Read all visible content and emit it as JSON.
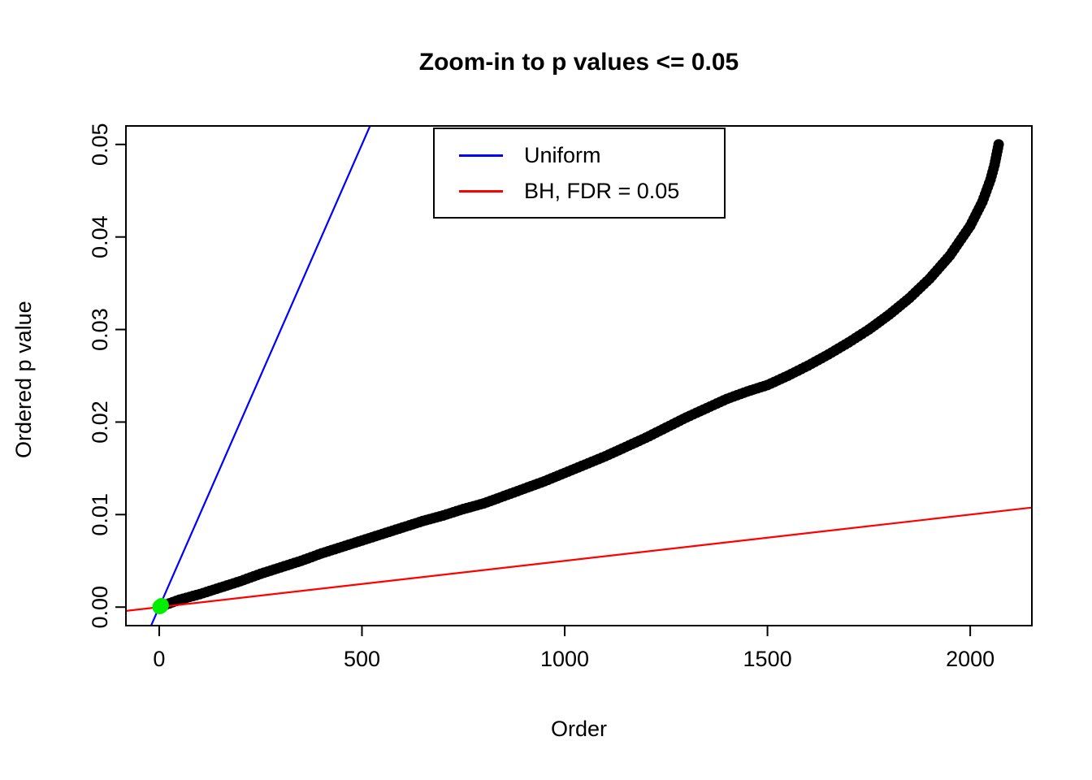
{
  "chart_data": {
    "type": "scatter",
    "title": "Zoom-in to p values <= 0.05",
    "xlabel": "Order",
    "ylabel": "Ordered p value",
    "xlim": [
      -82,
      2152
    ],
    "ylim": [
      -0.002,
      0.052
    ],
    "grid": false,
    "x_ticks": [
      0,
      500,
      1000,
      1500,
      2000
    ],
    "x_tick_labels": [
      "0",
      "500",
      "1000",
      "1500",
      "2000"
    ],
    "y_ticks": [
      0.0,
      0.01,
      0.02,
      0.03,
      0.04,
      0.05
    ],
    "y_tick_labels": [
      "0.00",
      "0.01",
      "0.02",
      "0.03",
      "0.04",
      "0.05"
    ],
    "legend": {
      "position": "top-center-inside",
      "entries": [
        {
          "label": "Uniform",
          "color": "#0000ff"
        },
        {
          "label": "BH, FDR = 0.05",
          "color": "#ff0000"
        }
      ]
    },
    "series": [
      {
        "name": "ordered-p-values",
        "type": "scatter",
        "color": "#000000",
        "marker": "filled-circle",
        "points": [
          [
            1,
            5e-05
          ],
          [
            25,
            0.0004
          ],
          [
            50,
            0.0008
          ],
          [
            75,
            0.0011
          ],
          [
            100,
            0.0014
          ],
          [
            150,
            0.0021
          ],
          [
            200,
            0.0028
          ],
          [
            250,
            0.0036
          ],
          [
            300,
            0.0043
          ],
          [
            350,
            0.005
          ],
          [
            400,
            0.0058
          ],
          [
            450,
            0.0065
          ],
          [
            500,
            0.0072
          ],
          [
            550,
            0.0079
          ],
          [
            600,
            0.0086
          ],
          [
            650,
            0.0093
          ],
          [
            700,
            0.0099
          ],
          [
            750,
            0.0106
          ],
          [
            800,
            0.0112
          ],
          [
            850,
            0.012
          ],
          [
            900,
            0.0128
          ],
          [
            950,
            0.0136
          ],
          [
            1000,
            0.0145
          ],
          [
            1050,
            0.0154
          ],
          [
            1100,
            0.0163
          ],
          [
            1150,
            0.0173
          ],
          [
            1200,
            0.0183
          ],
          [
            1250,
            0.0194
          ],
          [
            1300,
            0.0205
          ],
          [
            1350,
            0.0215
          ],
          [
            1400,
            0.0225
          ],
          [
            1450,
            0.0233
          ],
          [
            1500,
            0.024
          ],
          [
            1550,
            0.025
          ],
          [
            1600,
            0.0261
          ],
          [
            1650,
            0.0273
          ],
          [
            1700,
            0.0286
          ],
          [
            1750,
            0.03
          ],
          [
            1800,
            0.0316
          ],
          [
            1850,
            0.0334
          ],
          [
            1900,
            0.0355
          ],
          [
            1950,
            0.038
          ],
          [
            2000,
            0.0412
          ],
          [
            2030,
            0.0438
          ],
          [
            2050,
            0.0462
          ],
          [
            2060,
            0.0478
          ],
          [
            2070,
            0.05
          ]
        ]
      },
      {
        "name": "uniform-line",
        "label": "Uniform",
        "type": "abline",
        "color": "#0000ff",
        "slope": 0.0001,
        "intercept": 0
      },
      {
        "name": "bh-line",
        "label": "BH, FDR = 0.05",
        "type": "abline",
        "color": "#ff0000",
        "slope": 5e-06,
        "intercept": 0
      },
      {
        "name": "bh-significant",
        "type": "scatter",
        "color": "#00ee00",
        "marker": "filled-circle",
        "points": [
          [
            1,
            2e-05
          ],
          [
            2,
            4e-05
          ],
          [
            3,
            7e-05
          ],
          [
            4,
            0.0001
          ],
          [
            5,
            0.00015
          ],
          [
            6,
            0.0002
          ]
        ]
      }
    ]
  }
}
